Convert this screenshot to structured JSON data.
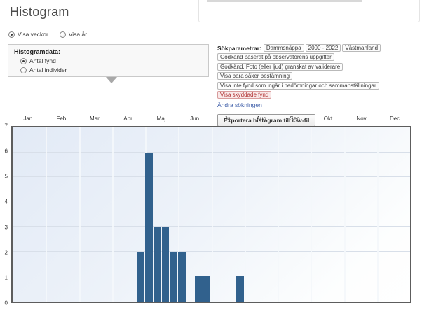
{
  "page": {
    "title": "Histogram"
  },
  "view_toggle": {
    "options": [
      {
        "label": "Visa veckor",
        "selected": true
      },
      {
        "label": "Visa år",
        "selected": false
      }
    ]
  },
  "histogram_data_panel": {
    "title": "Histogramdata:",
    "options": [
      {
        "label": "Antal fynd",
        "selected": true
      },
      {
        "label": "Antal individer",
        "selected": false
      }
    ]
  },
  "search_params": {
    "label": "Sökparametrar:",
    "tags": [
      "Dammsnäppa",
      "2000 - 2022",
      "Västmanland"
    ],
    "filters": [
      "Godkänd baserat på observatörens uppgifter",
      "Godkänd. Foto (eller ljud) granskat av validerare",
      "Visa bara säker bestämning",
      "Visa inte fynd som ingår i bedömningar och sammanställningar"
    ],
    "highlighted_filter": "Visa skyddade fynd",
    "edit_link": "Ändra sökningen",
    "export_button": "Exportera histogram till csv-fil"
  },
  "chart_data": {
    "type": "bar",
    "title": "",
    "month_labels": [
      "Jan",
      "Feb",
      "Mar",
      "Apr",
      "Maj",
      "Jun",
      "Jul",
      "Aug",
      "Sep",
      "Okt",
      "Nov",
      "Dec"
    ],
    "y_axis": {
      "min": 0,
      "max": 7,
      "ticks": [
        0,
        1,
        2,
        3,
        4,
        5,
        6,
        7
      ]
    },
    "slots_per_year": 48,
    "bars": [
      {
        "slot": 15,
        "value": 2
      },
      {
        "slot": 16,
        "value": 6
      },
      {
        "slot": 17,
        "value": 3
      },
      {
        "slot": 18,
        "value": 3
      },
      {
        "slot": 19,
        "value": 2
      },
      {
        "slot": 20,
        "value": 2
      },
      {
        "slot": 22,
        "value": 1
      },
      {
        "slot": 23,
        "value": 1
      },
      {
        "slot": 27,
        "value": 1
      }
    ],
    "colors": {
      "bar": "#31618d",
      "grid_h": "#d8dfe9",
      "border": "#5d5d5d"
    },
    "legend": "none",
    "grid": true
  }
}
